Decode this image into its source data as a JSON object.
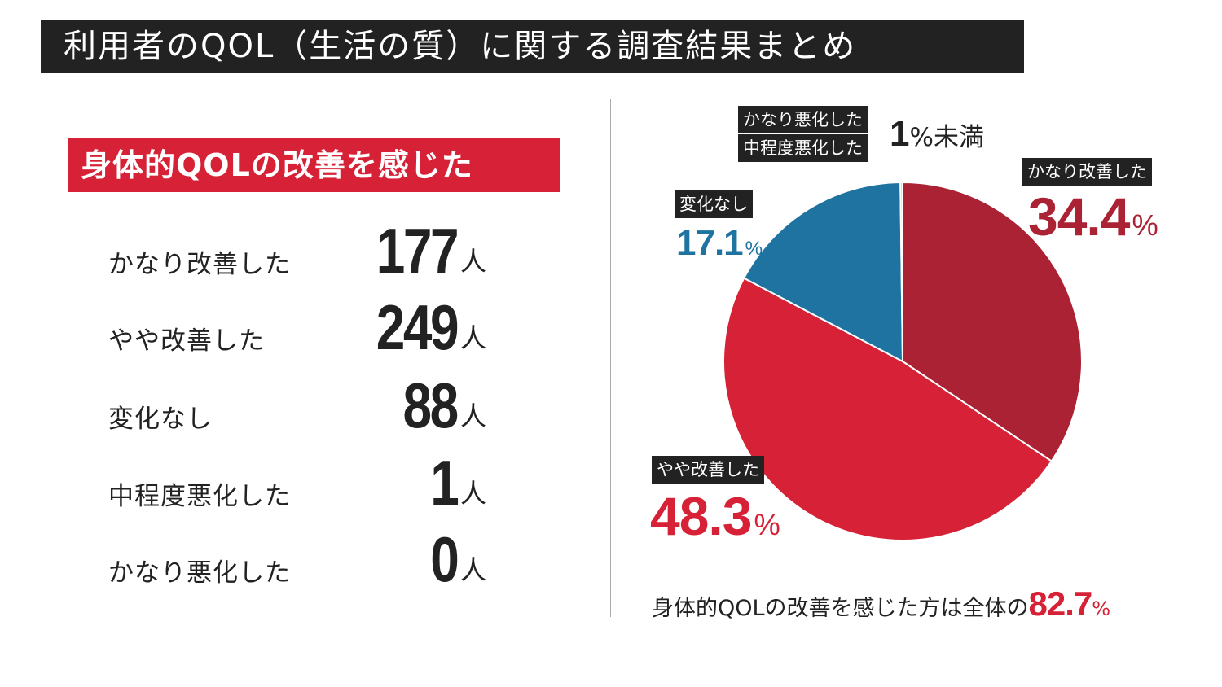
{
  "title": "利用者のQOL（生活の質）に関する調査結果まとめ",
  "section_label": "身体的QOLの改善を感じた",
  "unit": "人",
  "rows": [
    {
      "label": "かなり改善した",
      "value": "177"
    },
    {
      "label": "やや改善した",
      "value": "249"
    },
    {
      "label": "変化なし",
      "value": "88"
    },
    {
      "label": "中程度悪化した",
      "value": "1"
    },
    {
      "label": "かなり悪化した",
      "value": "0"
    }
  ],
  "colors": {
    "dark": "#222222",
    "red": "#d62136",
    "dark_red": "#ab2234",
    "blue": "#1e73a0"
  },
  "chart_data": {
    "type": "pie",
    "title": "",
    "slices": [
      {
        "name": "かなり改善した",
        "value": 34.4,
        "color": "#ab2234"
      },
      {
        "name": "やや改善した",
        "value": 48.3,
        "color": "#d62136"
      },
      {
        "name": "変化なし",
        "value": 17.1,
        "color": "#1e73a0"
      },
      {
        "name": "中程度悪化した",
        "value": 0.2,
        "color": "#cccccc"
      },
      {
        "name": "かなり悪化した",
        "value": 0,
        "color": "#cccccc"
      }
    ],
    "labels": {
      "much_improved": {
        "tag": "かなり改善した",
        "value": "34.4",
        "symbol": "%"
      },
      "slightly_improved": {
        "tag": "やや改善した",
        "value": "48.3",
        "symbol": "%"
      },
      "no_change": {
        "tag": "変化なし",
        "value": "17.1",
        "symbol": "%"
      },
      "worsened_severe": {
        "tag": "かなり悪化した"
      },
      "worsened_moderate": {
        "tag": "中程度悪化した"
      },
      "worsened_note": {
        "value": "1",
        "symbol": "%",
        "suffix": "未満"
      }
    }
  },
  "footer": {
    "text": "身体的QOLの改善を感じた方は全体の",
    "value": "82.7",
    "symbol": "%"
  }
}
